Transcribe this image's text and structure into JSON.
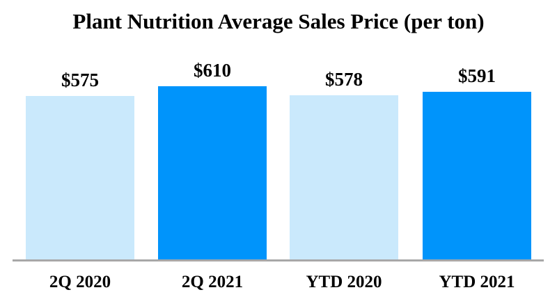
{
  "title": "Plant Nutrition Average Sales Price (per ton)",
  "chart_data": {
    "type": "bar",
    "title": "Plant Nutrition Average Sales Price (per ton)",
    "categories": [
      "2Q 2020",
      "2Q 2021",
      "YTD 2020",
      "YTD 2021"
    ],
    "values": [
      575,
      610,
      578,
      591
    ],
    "value_labels": [
      "$575",
      "$610",
      "$578",
      "$591"
    ],
    "xlabel": "",
    "ylabel": "",
    "ylim": [
      0,
      650
    ],
    "grid": false,
    "legend": false,
    "bar_colors": [
      "#CAE9FC",
      "#0094FB",
      "#CAE9FC",
      "#0094FB"
    ]
  },
  "colors": {
    "bar_light": "#CAE9FC",
    "bar_dark": "#0094FB",
    "axis_line": "#A8A8A8",
    "text": "#000000",
    "background": "#FFFFFF"
  }
}
